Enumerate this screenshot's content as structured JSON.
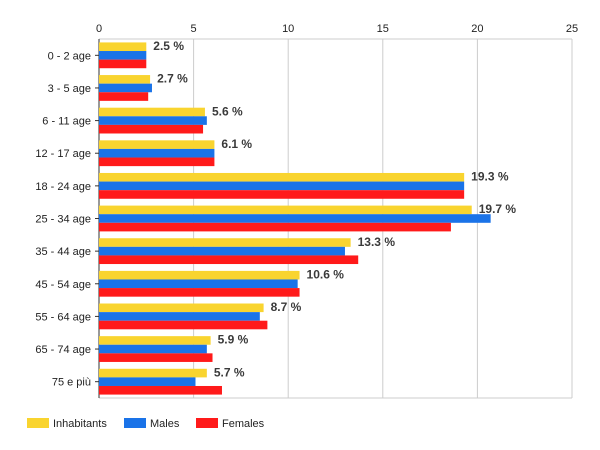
{
  "chart_data": {
    "type": "bar",
    "orientation": "horizontal",
    "categories": [
      "0 - 2 age",
      "3 - 5 age",
      "6 - 11 age",
      "12 - 17 age",
      "18 - 24 age",
      "25 - 34 age",
      "35 - 44 age",
      "45 - 54 age",
      "55 - 64 age",
      "65 - 74 age",
      "75 e più"
    ],
    "series": [
      {
        "name": "Inhabitants",
        "color": "#f9d42f",
        "values": [
          2.5,
          2.7,
          5.6,
          6.1,
          19.3,
          19.7,
          13.3,
          10.6,
          8.7,
          5.9,
          5.7
        ]
      },
      {
        "name": "Males",
        "color": "#1a73e8",
        "values": [
          2.5,
          2.8,
          5.7,
          6.1,
          19.3,
          20.7,
          13.0,
          10.5,
          8.5,
          5.7,
          5.1
        ]
      },
      {
        "name": "Females",
        "color": "#ff1a1a",
        "values": [
          2.5,
          2.6,
          5.5,
          6.1,
          19.3,
          18.6,
          13.7,
          10.6,
          8.9,
          6.0,
          6.5
        ]
      }
    ],
    "data_labels": [
      "2.5 %",
      "2.7 %",
      "5.6 %",
      "6.1 %",
      "19.3 %",
      "19.7 %",
      "13.3 %",
      "10.6 %",
      "8.7 %",
      "5.9 %",
      "5.7 %"
    ],
    "xlim": [
      0,
      25
    ],
    "xticks": [
      0,
      5,
      10,
      15,
      20,
      25
    ],
    "xaxis_position": "top",
    "grid": true,
    "legend_position": "bottom-left",
    "title": "",
    "xlabel": "",
    "ylabel": ""
  }
}
